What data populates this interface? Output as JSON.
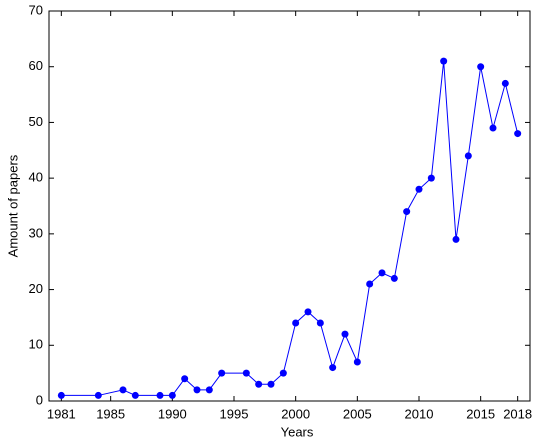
{
  "chart_data": {
    "type": "line",
    "x_label": "Years",
    "y_label": "Amount of papers",
    "x": [
      1981,
      1984,
      1986,
      1987,
      1989,
      1990,
      1991,
      1992,
      1993,
      1994,
      1996,
      1997,
      1998,
      1999,
      2000,
      2001,
      2002,
      2003,
      2004,
      2005,
      2006,
      2007,
      2008,
      2009,
      2010,
      2011,
      2012,
      2013,
      2014,
      2015,
      2016,
      2017,
      2018
    ],
    "series": [
      {
        "color": "#0000ff",
        "values": [
          1,
          1,
          2,
          1,
          1,
          1,
          4,
          2,
          2,
          5,
          5,
          3,
          3,
          5,
          14,
          16,
          14,
          6,
          12,
          7,
          21,
          23,
          22,
          34,
          38,
          40,
          61,
          29,
          44,
          60,
          49,
          57,
          48
        ]
      }
    ],
    "xlim": [
      1980,
      2019
    ],
    "xticks": [
      1981,
      1985,
      1990,
      1995,
      2000,
      2005,
      2010,
      2015,
      2018
    ],
    "ylim": [
      0,
      70
    ],
    "yticks": [
      0,
      10,
      20,
      30,
      40,
      50,
      60,
      70
    ]
  }
}
